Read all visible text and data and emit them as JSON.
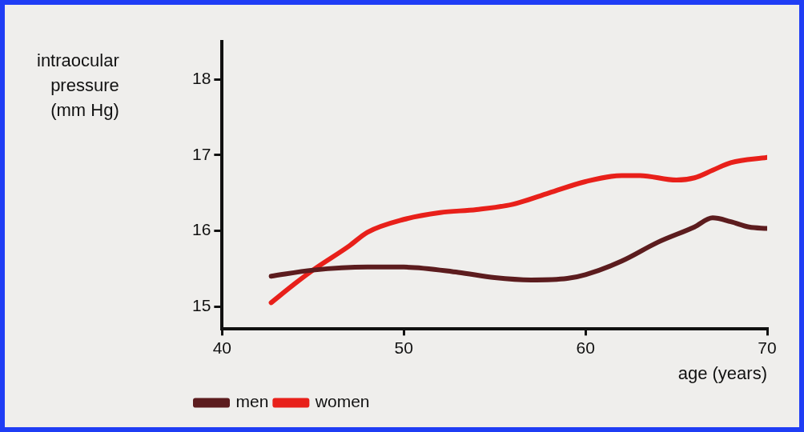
{
  "chart_data": {
    "type": "line",
    "xlabel": "age (years)",
    "ylabel": "intraocular\npressure\n(mm Hg)",
    "xlim": [
      40,
      70
    ],
    "xticks": [
      40,
      50,
      60,
      70
    ],
    "ylim": [
      14.7,
      18.5
    ],
    "yticks": [
      15,
      16,
      17,
      18
    ],
    "grid": false,
    "legend": "bottom left",
    "marker": "none",
    "line_style": "solid",
    "series": [
      {
        "name": "men",
        "color": "#5c1c1e",
        "x": [
          42.7,
          45,
          48,
          50,
          53,
          55,
          57,
          59,
          60,
          62,
          64,
          66,
          67,
          68,
          69,
          70
        ],
        "values": [
          15.4,
          15.48,
          15.52,
          15.52,
          15.45,
          15.38,
          15.35,
          15.37,
          15.42,
          15.6,
          15.85,
          16.05,
          16.17,
          16.12,
          16.05,
          16.03
        ]
      },
      {
        "name": "women",
        "color": "#e8201a",
        "x": [
          42.7,
          44,
          45,
          47,
          48,
          50,
          52,
          54,
          56,
          58,
          60,
          62,
          63,
          65,
          66,
          67,
          68,
          70
        ],
        "values": [
          15.05,
          15.3,
          15.48,
          15.8,
          15.98,
          16.15,
          16.24,
          16.28,
          16.35,
          16.5,
          16.65,
          16.73,
          16.73,
          16.67,
          16.7,
          16.8,
          16.9,
          16.97
        ]
      }
    ]
  }
}
